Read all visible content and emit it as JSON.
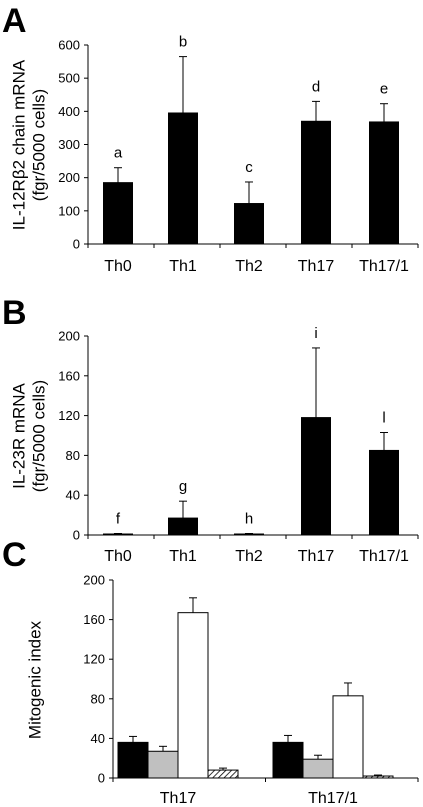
{
  "chart_data": [
    {
      "type": "bar",
      "panel": "A",
      "ylabel": [
        "IL-12Rβ2 chain mRNA",
        "(fgr/5000 cells)"
      ],
      "categories": [
        "Th0",
        "Th1",
        "Th2",
        "Th17",
        "Th17/1"
      ],
      "series": [
        {
          "color": "#000000",
          "values": [
            185,
            395,
            122,
            370,
            368
          ],
          "errors": [
            45,
            170,
            65,
            60,
            55
          ]
        }
      ],
      "annotations": [
        "a",
        "b",
        "c",
        "d",
        "e"
      ],
      "ylim": [
        0,
        600
      ],
      "yticks": [
        0,
        100,
        200,
        300,
        400,
        500,
        600
      ]
    },
    {
      "type": "bar",
      "panel": "B",
      "ylabel": [
        "IL-23R mRNA",
        "(fgr/5000 cells)"
      ],
      "categories": [
        "Th0",
        "Th1",
        "Th2",
        "Th17",
        "Th17/1"
      ],
      "series": [
        {
          "color": "#000000",
          "values": [
            1,
            17,
            1,
            118,
            85
          ],
          "errors": [
            0.5,
            17,
            0.5,
            70,
            18
          ]
        }
      ],
      "annotations": [
        "f",
        "g",
        "h",
        "i",
        "l"
      ],
      "ylim": [
        0,
        200
      ],
      "yticks": [
        0,
        40,
        80,
        120,
        160,
        200
      ]
    },
    {
      "type": "bar",
      "panel": "C",
      "ylabel": [
        "Mitogenic index"
      ],
      "categories": [
        "Th17",
        "Th17/1"
      ],
      "series": [
        {
          "color": "#000000",
          "values": [
            36,
            36
          ],
          "errors": [
            6,
            7
          ]
        },
        {
          "color": "#c0c0c0",
          "values": [
            27,
            19
          ],
          "errors": [
            5,
            4
          ]
        },
        {
          "color": "#ffffff",
          "values": [
            167,
            83
          ],
          "errors": [
            15,
            13
          ]
        },
        {
          "color": "hatched",
          "values": [
            8,
            2
          ],
          "errors": [
            2,
            1
          ]
        }
      ],
      "ylim": [
        0,
        200
      ],
      "yticks": [
        0,
        40,
        80,
        120,
        160,
        200
      ]
    }
  ]
}
